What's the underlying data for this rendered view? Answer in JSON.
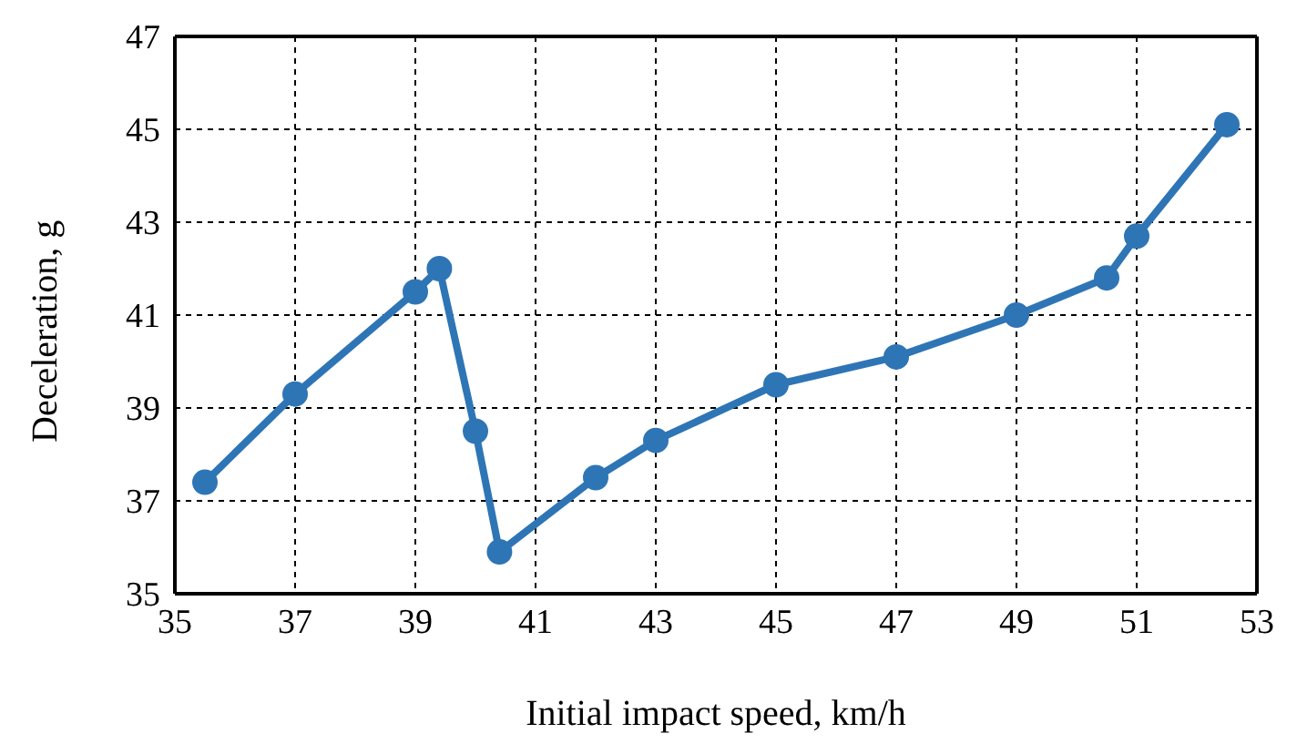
{
  "chart_data": {
    "type": "line",
    "xlabel": "Initial impact speed, km/h",
    "ylabel": "Deceleration, g",
    "x": [
      35.5,
      37,
      39,
      39.4,
      40,
      40.4,
      42,
      43,
      45,
      47,
      49,
      50.5,
      51,
      52.5
    ],
    "series": [
      {
        "color": "#2e75b6",
        "values": [
          37.4,
          39.3,
          41.5,
          42.0,
          38.5,
          35.9,
          37.5,
          38.3,
          39.5,
          40.1,
          41.0,
          41.8,
          42.7,
          45.1
        ]
      }
    ],
    "xlim": [
      35,
      53
    ],
    "xticks": [
      35,
      37,
      39,
      41,
      43,
      45,
      47,
      49,
      51,
      53
    ],
    "ylim": [
      35,
      47
    ],
    "yticks": [
      35,
      37,
      39,
      41,
      43,
      45,
      47
    ],
    "grid": true,
    "marker": "circle",
    "line_style": "solid"
  }
}
